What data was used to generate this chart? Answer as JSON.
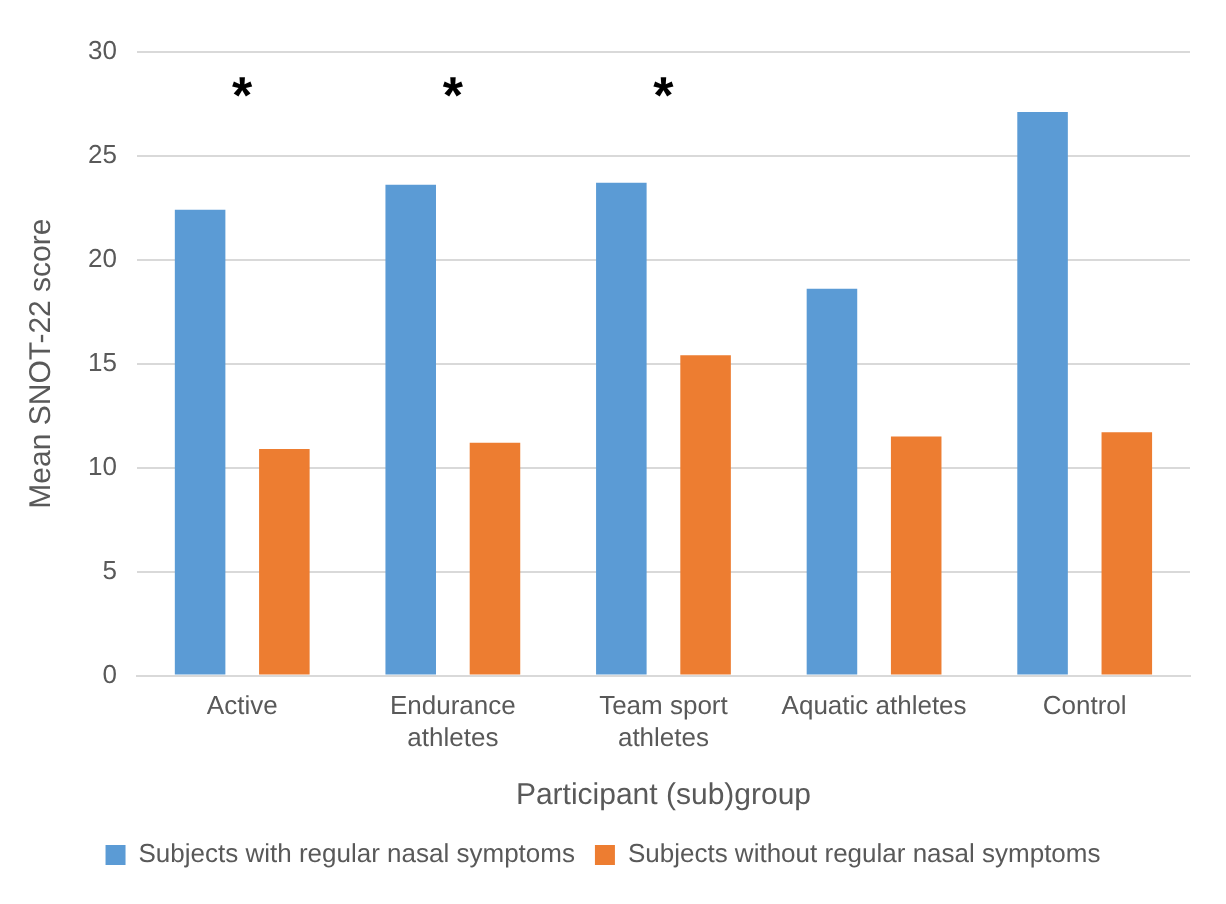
{
  "chart_data": {
    "type": "bar",
    "xlabel": "Participant (sub)group",
    "ylabel": "Mean SNOT-22 score",
    "categories": [
      "Active",
      "Endurance athletes",
      "Team sport athletes",
      "Aquatic athletes",
      "Control"
    ],
    "series": [
      {
        "name": "Subjects with regular nasal symptoms",
        "color": "#5b9bd5",
        "values": [
          22.4,
          23.6,
          23.7,
          18.6,
          27.1
        ]
      },
      {
        "name": "Subjects without regular nasal symptoms",
        "color": "#ed7d31",
        "values": [
          10.9,
          11.2,
          15.4,
          11.5,
          11.7
        ]
      }
    ],
    "ylim": [
      0,
      30
    ],
    "yticks": [
      0,
      5,
      10,
      15,
      20,
      25,
      30
    ],
    "grid": "y",
    "legend": "bottom",
    "annotations": [
      "*",
      "*",
      "*"
    ]
  }
}
